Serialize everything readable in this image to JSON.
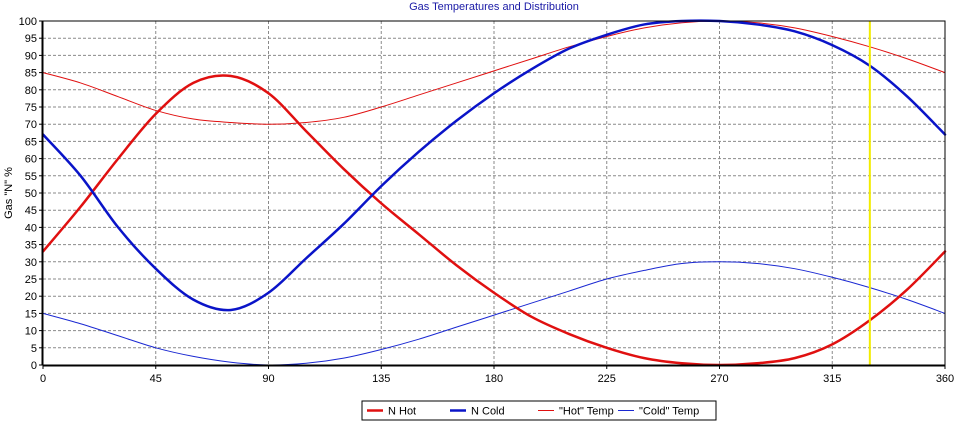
{
  "chart_data": {
    "type": "line",
    "title": "Gas Temperatures and  Distribution",
    "xlabel": "",
    "ylabel": "Gas \"N\" %",
    "xlim": [
      0,
      360
    ],
    "ylim": [
      0,
      100
    ],
    "xticks": [
      0,
      45,
      90,
      135,
      180,
      225,
      270,
      315,
      360
    ],
    "yticks": [
      0,
      5,
      10,
      15,
      20,
      25,
      30,
      35,
      40,
      45,
      50,
      55,
      60,
      65,
      70,
      75,
      80,
      85,
      90,
      95,
      100
    ],
    "grid": true,
    "cursor_x": 330,
    "x": [
      0,
      15,
      30,
      45,
      60,
      75,
      90,
      105,
      120,
      135,
      150,
      165,
      180,
      195,
      210,
      225,
      240,
      255,
      270,
      285,
      300,
      315,
      330,
      345,
      360
    ],
    "series": [
      {
        "name": "N Hot",
        "color": "#e01010",
        "width": "thick",
        "values": [
          33,
          46,
          60,
          73,
          82,
          84,
          79,
          68,
          57,
          47,
          38,
          29,
          21,
          14,
          9,
          5,
          2,
          0.5,
          0,
          0.5,
          2,
          6,
          13,
          22,
          33
        ]
      },
      {
        "name": "N Cold",
        "color": "#0a14c8",
        "width": "thick",
        "values": [
          67,
          55,
          40,
          28,
          19,
          16,
          21,
          31,
          41,
          52,
          62,
          71,
          79,
          86,
          92,
          96,
          99,
          100,
          100,
          99,
          97,
          93,
          87,
          78,
          67
        ]
      },
      {
        "name": "\"Hot\" Temp",
        "color": "#e01010",
        "width": "thin",
        "values": [
          85,
          82,
          78,
          74,
          71.5,
          70.5,
          70,
          70.5,
          72,
          75,
          78.5,
          82,
          85.5,
          89,
          92.5,
          95.5,
          98,
          99.5,
          100,
          99.5,
          98,
          95.5,
          92.5,
          89,
          85
        ]
      },
      {
        "name": "\"Cold\" Temp",
        "color": "#1a28d2",
        "width": "thin",
        "values": [
          15,
          12,
          8.5,
          5,
          2.5,
          0.8,
          0,
          0.5,
          2,
          4.5,
          7.5,
          11,
          14.5,
          18,
          21.5,
          25,
          27.5,
          29.5,
          30,
          29.5,
          28,
          25.5,
          22.5,
          19,
          15
        ]
      }
    ],
    "legend": {
      "placement": "bottom-center",
      "entries": [
        "N Hot",
        "N Cold",
        "\"Hot\" Temp",
        "\"Cold\" Temp"
      ]
    }
  }
}
